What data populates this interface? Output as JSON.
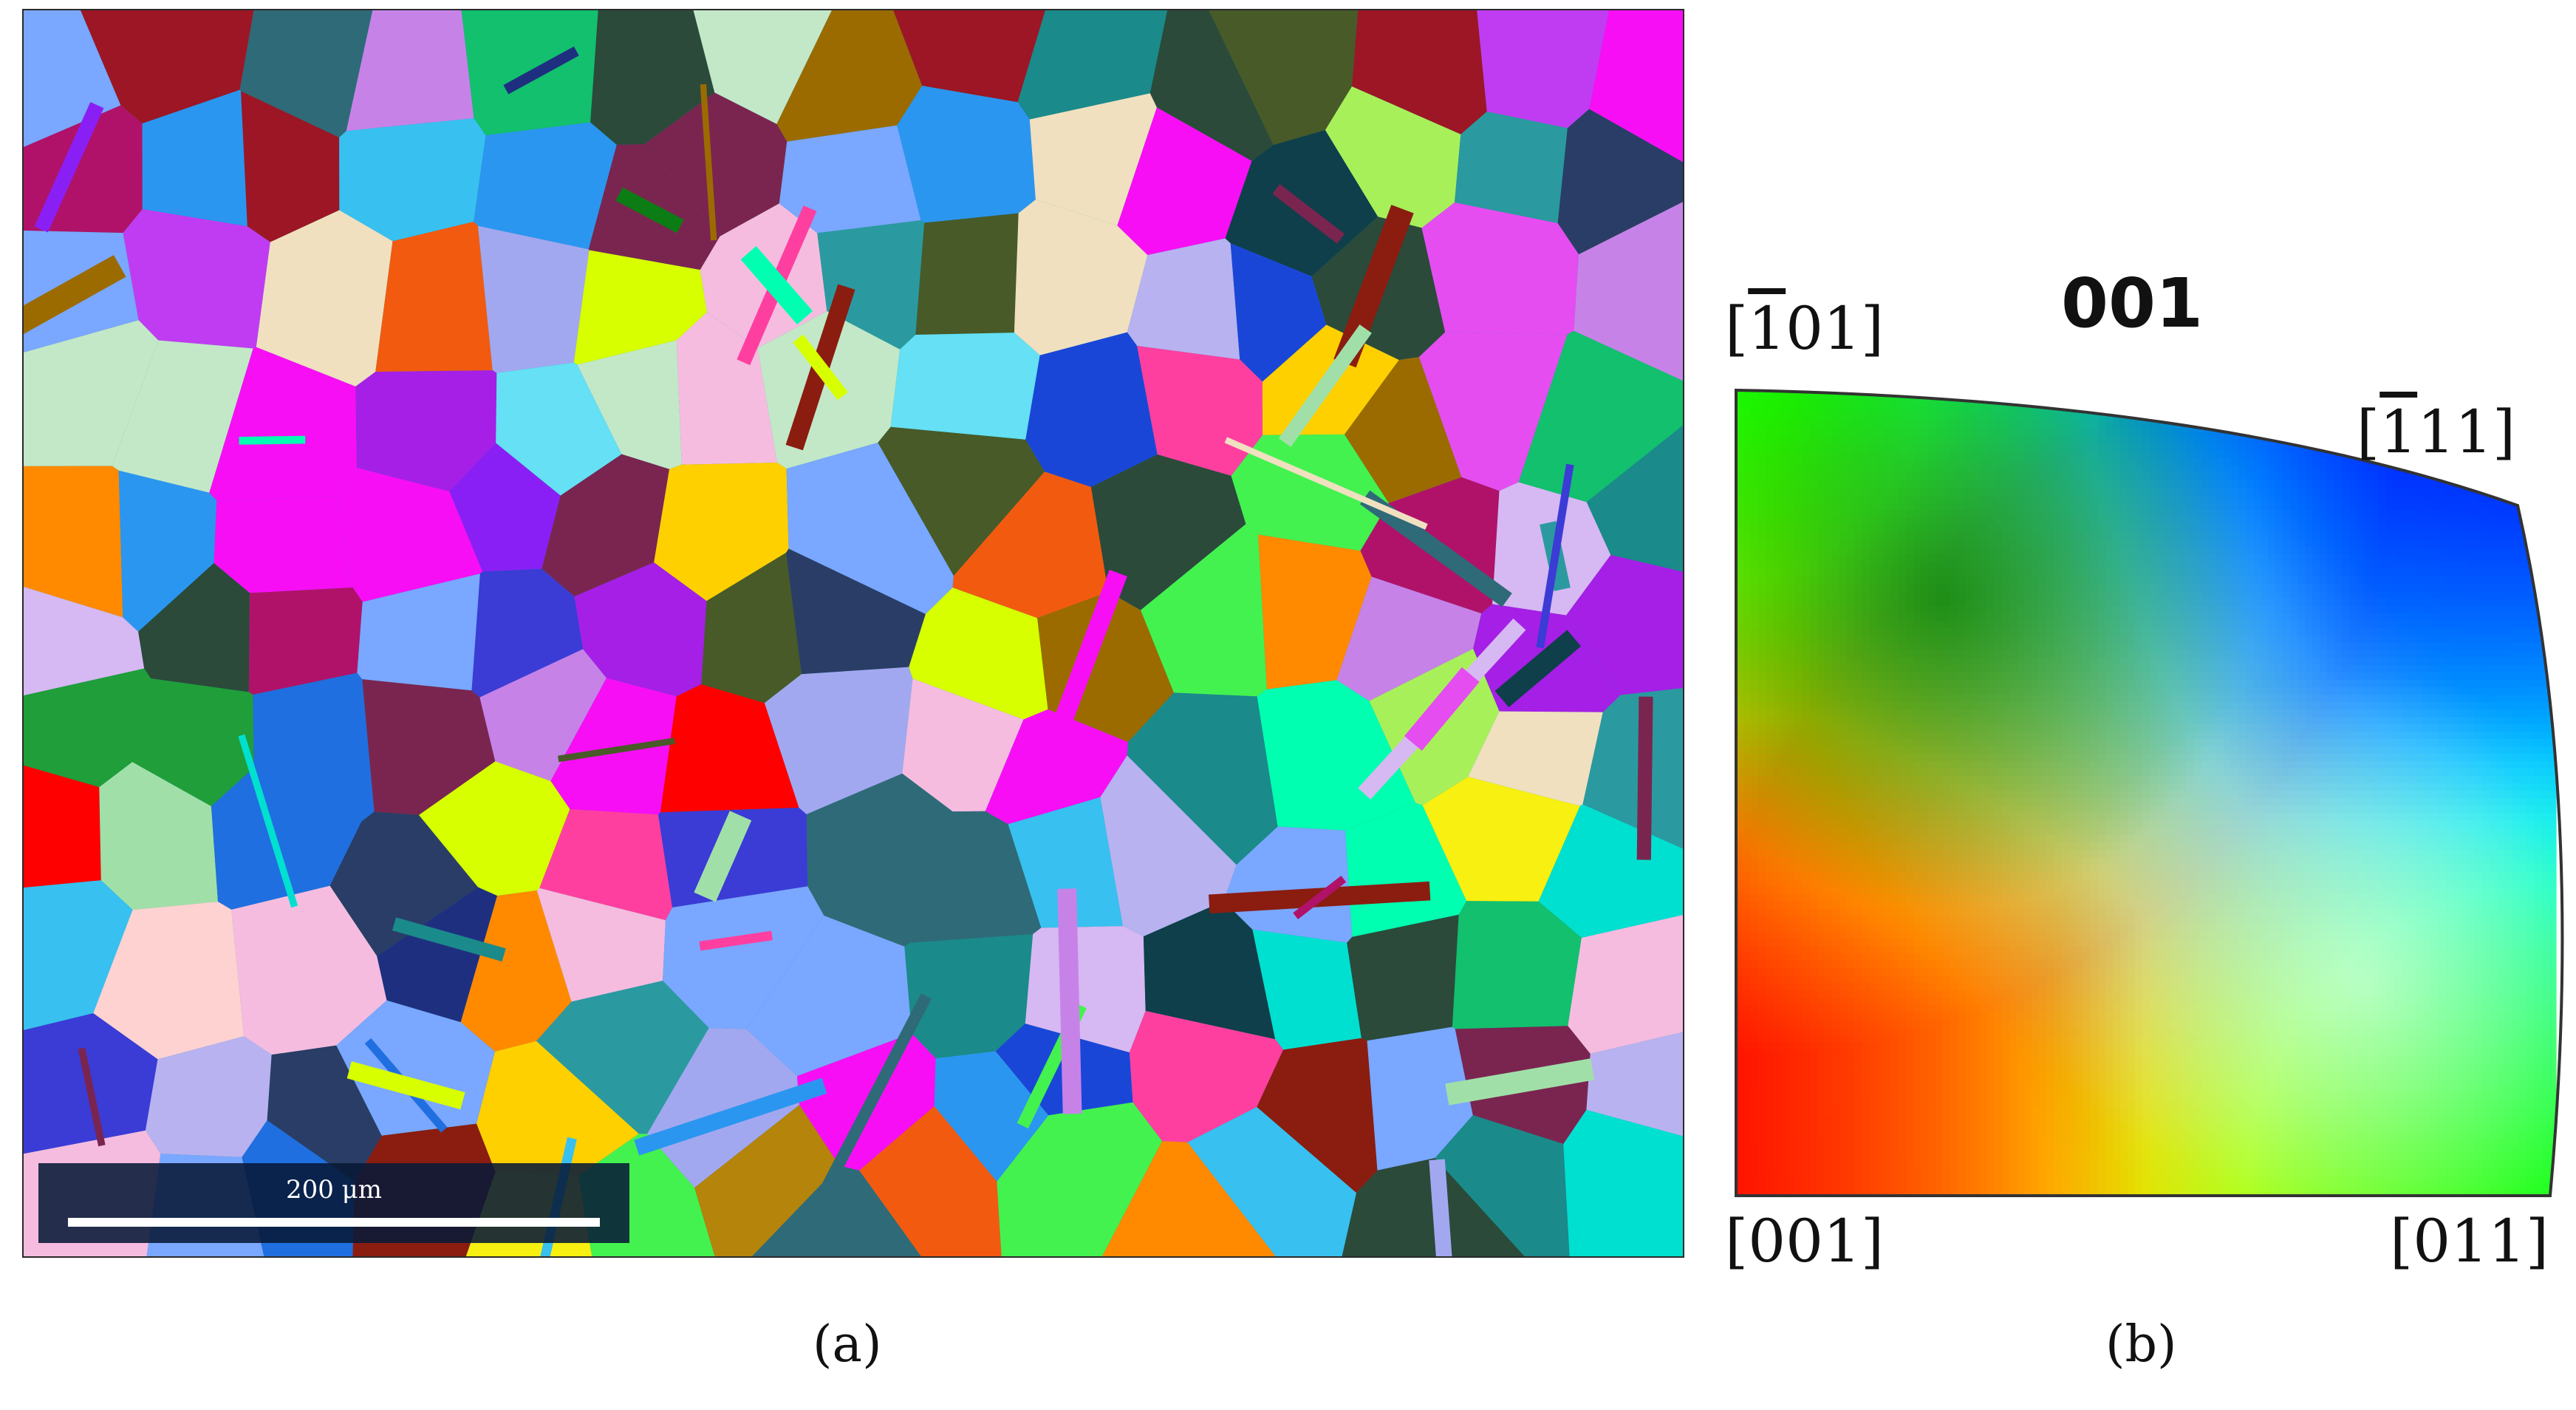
{
  "figure": {
    "panel_a": {
      "caption": "(a)",
      "scale_bar_label": "200 μm",
      "grain_palette": [
        "#ff0000",
        "#ff3fa0",
        "#f80ef5",
        "#a51fe6",
        "#8a1ff5",
        "#c03cf2",
        "#c782e8",
        "#e54df0",
        "#3b3bd6",
        "#1a46d8",
        "#1f6fe0",
        "#2b96f0",
        "#38c0f0",
        "#65e0f5",
        "#00e0d0",
        "#00ffb0",
        "#12c06e",
        "#1f9e3a",
        "#0c7c14",
        "#43f24f",
        "#a8f05a",
        "#d7ff00",
        "#f7f010",
        "#ffd000",
        "#ff8a00",
        "#f25a10",
        "#b5840a",
        "#9b6b00",
        "#8a1d10",
        "#9c1625",
        "#b0126a",
        "#7a2550",
        "#2a3d66",
        "#1f2f80",
        "#0f3f4a",
        "#2b4a3a",
        "#485a27",
        "#2f6a78",
        "#1a8a8a",
        "#2a9aa0",
        "#7aa7ff",
        "#a2a8f0",
        "#b8b2f0",
        "#f5bce0",
        "#ffd2d2",
        "#f0e0c0",
        "#e8f5c8",
        "#c3e8c8",
        "#d6b8f2",
        "#a0e0a8"
      ]
    },
    "panel_b": {
      "caption": "(b)",
      "title": "001",
      "corner_labels": {
        "top_left": "[101]",
        "top_right": "[111]",
        "bottom_left": "[001]",
        "bottom_right": "[011]"
      },
      "corner_colors": {
        "001": "#ff0000",
        "011": "#00ff00",
        "111": "#0000ff"
      }
    }
  }
}
